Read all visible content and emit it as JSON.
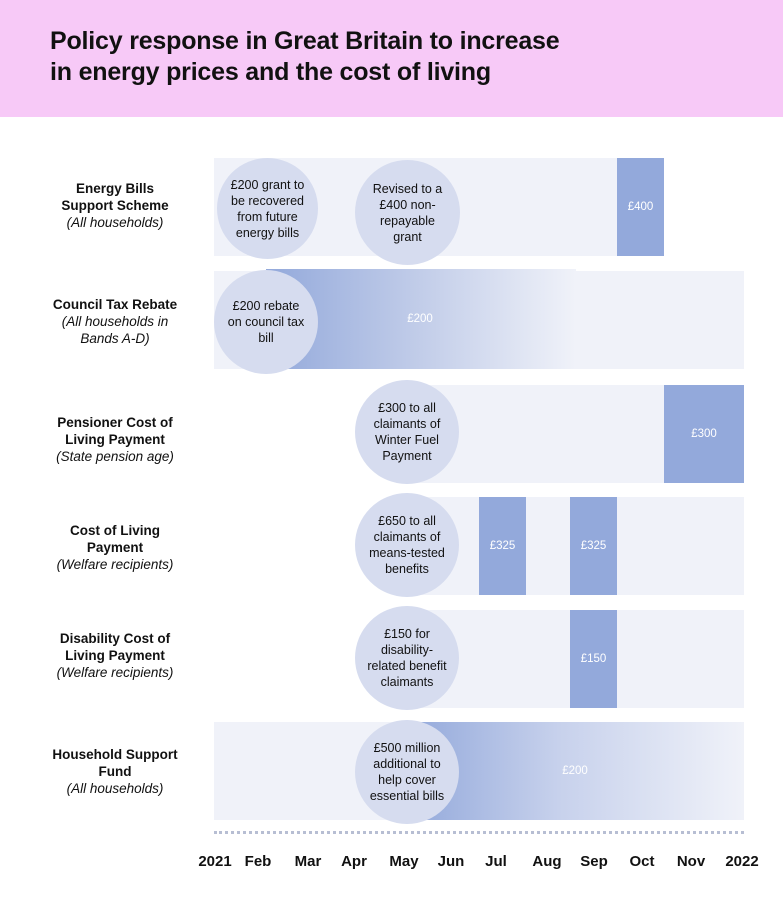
{
  "title_line1": "Policy response in Great Britain to increase",
  "title_line2": "in energy prices and the cost of living",
  "rows": [
    {
      "name": "Energy Bills",
      "name2": "Support Scheme",
      "sub": "(All households)",
      "bubbles": [
        "£200 grant to be recovered from future energy bills",
        "Revised to a £400 non-repayable grant"
      ],
      "payments": [
        "£400"
      ]
    },
    {
      "name": "Council Tax Rebate",
      "sub": "(All households in",
      "sub2": "Bands A-D)",
      "bubbles": [
        "£200 rebate on council tax bill"
      ],
      "payments": [
        "£200"
      ]
    },
    {
      "name": "Pensioner Cost of",
      "name2": "Living Payment",
      "sub": "(State pension age)",
      "bubbles": [
        "£300 to all claimants of Winter Fuel Payment"
      ],
      "payments": [
        "£300"
      ]
    },
    {
      "name": "Cost of Living",
      "name2": "Payment",
      "sub": "(Welfare recipients)",
      "bubbles": [
        "£650 to all claimants of means-tested benefits"
      ],
      "payments": [
        "£325",
        "£325"
      ]
    },
    {
      "name": "Disability Cost of",
      "name2": "Living Payment",
      "sub": "(Welfare recipients)",
      "bubbles": [
        "£150 for disability-related benefit claimants"
      ],
      "payments": [
        "£150"
      ]
    },
    {
      "name": "Household Support",
      "name2": "Fund",
      "sub": "(All households)",
      "bubbles": [
        "£500 million additional to help cover essential bills"
      ],
      "payments": [
        "£200"
      ]
    }
  ],
  "axis": [
    "2021",
    "Feb",
    "Mar",
    "Apr",
    "May",
    "Jun",
    "Jul",
    "Aug",
    "Sep",
    "Oct",
    "Nov",
    "2022"
  ],
  "colors": {
    "header_bg": "#f7c9f7",
    "track": "#f0f2f9",
    "payment_bar": "#93a9db",
    "bubble": "#d6dcef"
  }
}
